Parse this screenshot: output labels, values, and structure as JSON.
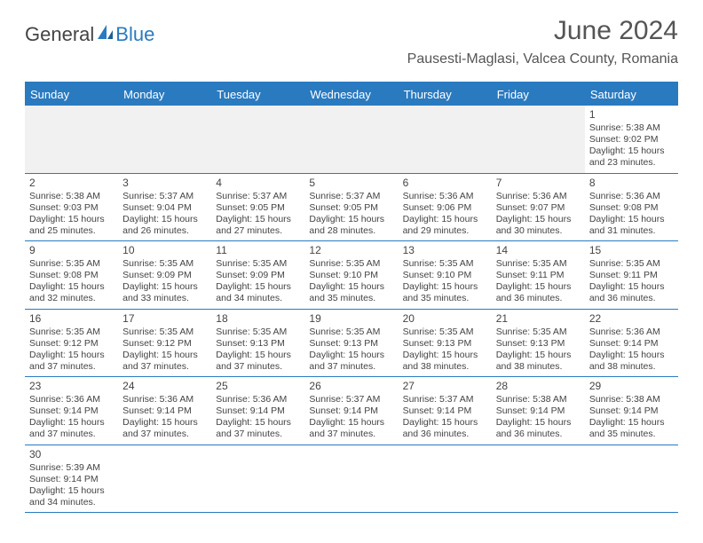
{
  "header": {
    "logo_part1": "General",
    "logo_part2": "Blue",
    "month_title": "June 2024",
    "location": "Pausesti-Maglasi, Valcea County, Romania"
  },
  "colors": {
    "accent": "#2a7ac0",
    "text": "#444444",
    "background": "#ffffff",
    "blank_bg": "#f1f1f1"
  },
  "days_of_week": [
    "Sunday",
    "Monday",
    "Tuesday",
    "Wednesday",
    "Thursday",
    "Friday",
    "Saturday"
  ],
  "weeks": [
    [
      {
        "blank": true
      },
      {
        "blank": true
      },
      {
        "blank": true
      },
      {
        "blank": true
      },
      {
        "blank": true
      },
      {
        "blank": true
      },
      {
        "day": "1",
        "sunrise": "Sunrise: 5:38 AM",
        "sunset": "Sunset: 9:02 PM",
        "daylight": "Daylight: 15 hours and 23 minutes."
      }
    ],
    [
      {
        "day": "2",
        "sunrise": "Sunrise: 5:38 AM",
        "sunset": "Sunset: 9:03 PM",
        "daylight": "Daylight: 15 hours and 25 minutes."
      },
      {
        "day": "3",
        "sunrise": "Sunrise: 5:37 AM",
        "sunset": "Sunset: 9:04 PM",
        "daylight": "Daylight: 15 hours and 26 minutes."
      },
      {
        "day": "4",
        "sunrise": "Sunrise: 5:37 AM",
        "sunset": "Sunset: 9:05 PM",
        "daylight": "Daylight: 15 hours and 27 minutes."
      },
      {
        "day": "5",
        "sunrise": "Sunrise: 5:37 AM",
        "sunset": "Sunset: 9:05 PM",
        "daylight": "Daylight: 15 hours and 28 minutes."
      },
      {
        "day": "6",
        "sunrise": "Sunrise: 5:36 AM",
        "sunset": "Sunset: 9:06 PM",
        "daylight": "Daylight: 15 hours and 29 minutes."
      },
      {
        "day": "7",
        "sunrise": "Sunrise: 5:36 AM",
        "sunset": "Sunset: 9:07 PM",
        "daylight": "Daylight: 15 hours and 30 minutes."
      },
      {
        "day": "8",
        "sunrise": "Sunrise: 5:36 AM",
        "sunset": "Sunset: 9:08 PM",
        "daylight": "Daylight: 15 hours and 31 minutes."
      }
    ],
    [
      {
        "day": "9",
        "sunrise": "Sunrise: 5:35 AM",
        "sunset": "Sunset: 9:08 PM",
        "daylight": "Daylight: 15 hours and 32 minutes."
      },
      {
        "day": "10",
        "sunrise": "Sunrise: 5:35 AM",
        "sunset": "Sunset: 9:09 PM",
        "daylight": "Daylight: 15 hours and 33 minutes."
      },
      {
        "day": "11",
        "sunrise": "Sunrise: 5:35 AM",
        "sunset": "Sunset: 9:09 PM",
        "daylight": "Daylight: 15 hours and 34 minutes."
      },
      {
        "day": "12",
        "sunrise": "Sunrise: 5:35 AM",
        "sunset": "Sunset: 9:10 PM",
        "daylight": "Daylight: 15 hours and 35 minutes."
      },
      {
        "day": "13",
        "sunrise": "Sunrise: 5:35 AM",
        "sunset": "Sunset: 9:10 PM",
        "daylight": "Daylight: 15 hours and 35 minutes."
      },
      {
        "day": "14",
        "sunrise": "Sunrise: 5:35 AM",
        "sunset": "Sunset: 9:11 PM",
        "daylight": "Daylight: 15 hours and 36 minutes."
      },
      {
        "day": "15",
        "sunrise": "Sunrise: 5:35 AM",
        "sunset": "Sunset: 9:11 PM",
        "daylight": "Daylight: 15 hours and 36 minutes."
      }
    ],
    [
      {
        "day": "16",
        "sunrise": "Sunrise: 5:35 AM",
        "sunset": "Sunset: 9:12 PM",
        "daylight": "Daylight: 15 hours and 37 minutes."
      },
      {
        "day": "17",
        "sunrise": "Sunrise: 5:35 AM",
        "sunset": "Sunset: 9:12 PM",
        "daylight": "Daylight: 15 hours and 37 minutes."
      },
      {
        "day": "18",
        "sunrise": "Sunrise: 5:35 AM",
        "sunset": "Sunset: 9:13 PM",
        "daylight": "Daylight: 15 hours and 37 minutes."
      },
      {
        "day": "19",
        "sunrise": "Sunrise: 5:35 AM",
        "sunset": "Sunset: 9:13 PM",
        "daylight": "Daylight: 15 hours and 37 minutes."
      },
      {
        "day": "20",
        "sunrise": "Sunrise: 5:35 AM",
        "sunset": "Sunset: 9:13 PM",
        "daylight": "Daylight: 15 hours and 38 minutes."
      },
      {
        "day": "21",
        "sunrise": "Sunrise: 5:35 AM",
        "sunset": "Sunset: 9:13 PM",
        "daylight": "Daylight: 15 hours and 38 minutes."
      },
      {
        "day": "22",
        "sunrise": "Sunrise: 5:36 AM",
        "sunset": "Sunset: 9:14 PM",
        "daylight": "Daylight: 15 hours and 38 minutes."
      }
    ],
    [
      {
        "day": "23",
        "sunrise": "Sunrise: 5:36 AM",
        "sunset": "Sunset: 9:14 PM",
        "daylight": "Daylight: 15 hours and 37 minutes."
      },
      {
        "day": "24",
        "sunrise": "Sunrise: 5:36 AM",
        "sunset": "Sunset: 9:14 PM",
        "daylight": "Daylight: 15 hours and 37 minutes."
      },
      {
        "day": "25",
        "sunrise": "Sunrise: 5:36 AM",
        "sunset": "Sunset: 9:14 PM",
        "daylight": "Daylight: 15 hours and 37 minutes."
      },
      {
        "day": "26",
        "sunrise": "Sunrise: 5:37 AM",
        "sunset": "Sunset: 9:14 PM",
        "daylight": "Daylight: 15 hours and 37 minutes."
      },
      {
        "day": "27",
        "sunrise": "Sunrise: 5:37 AM",
        "sunset": "Sunset: 9:14 PM",
        "daylight": "Daylight: 15 hours and 36 minutes."
      },
      {
        "day": "28",
        "sunrise": "Sunrise: 5:38 AM",
        "sunset": "Sunset: 9:14 PM",
        "daylight": "Daylight: 15 hours and 36 minutes."
      },
      {
        "day": "29",
        "sunrise": "Sunrise: 5:38 AM",
        "sunset": "Sunset: 9:14 PM",
        "daylight": "Daylight: 15 hours and 35 minutes."
      }
    ],
    [
      {
        "day": "30",
        "sunrise": "Sunrise: 5:39 AM",
        "sunset": "Sunset: 9:14 PM",
        "daylight": "Daylight: 15 hours and 34 minutes."
      },
      {
        "blank": true
      },
      {
        "blank": true
      },
      {
        "blank": true
      },
      {
        "blank": true
      },
      {
        "blank": true
      },
      {
        "blank": true
      }
    ]
  ]
}
